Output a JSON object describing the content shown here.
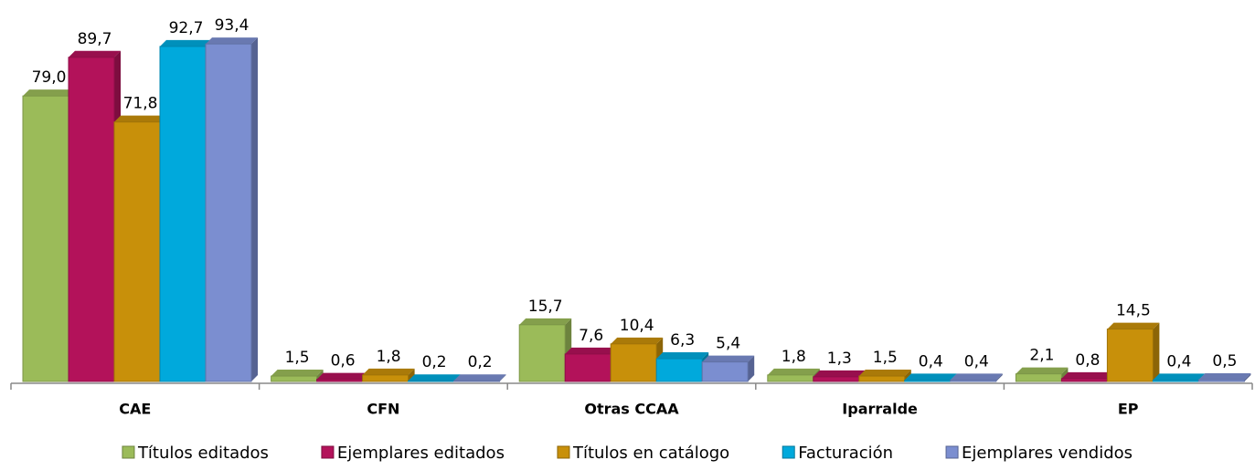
{
  "chart_data": {
    "type": "bar",
    "categories": [
      "CAE",
      "CFN",
      "Otras CCAA",
      "Iparralde",
      "EP"
    ],
    "ylim": [
      0,
      100
    ],
    "series": [
      {
        "name": "Títulos editados",
        "color": "#9bbb59",
        "values": [
          79.0,
          1.5,
          15.7,
          1.8,
          2.1
        ],
        "value_labels": [
          "79,0",
          "1,5",
          "15,7",
          "1,8",
          "2,1"
        ]
      },
      {
        "name": "Ejemplares editados",
        "color": "#b3125a",
        "values": [
          89.7,
          0.6,
          7.6,
          1.3,
          0.8
        ],
        "value_labels": [
          "89,7",
          "0,6",
          "7,6",
          "1,3",
          "0,8"
        ]
      },
      {
        "name": "Títulos en catálogo",
        "color": "#c8900a",
        "values": [
          71.8,
          1.8,
          10.4,
          1.5,
          14.5
        ],
        "value_labels": [
          "71,8",
          "1,8",
          "10,4",
          "1,5",
          "14,5"
        ]
      },
      {
        "name": "Facturación",
        "color": "#00a9dc",
        "values": [
          92.7,
          0.2,
          6.3,
          0.4,
          0.4
        ],
        "value_labels": [
          "92,7",
          "0,2",
          "6,3",
          "0,4",
          "0,4"
        ]
      },
      {
        "name": "Ejemplares vendidos",
        "color": "#7b8ed0",
        "values": [
          93.4,
          0.2,
          5.4,
          0.4,
          0.5
        ],
        "value_labels": [
          "93,4",
          "0,2",
          "5,4",
          "0,4",
          "0,5"
        ]
      }
    ]
  }
}
